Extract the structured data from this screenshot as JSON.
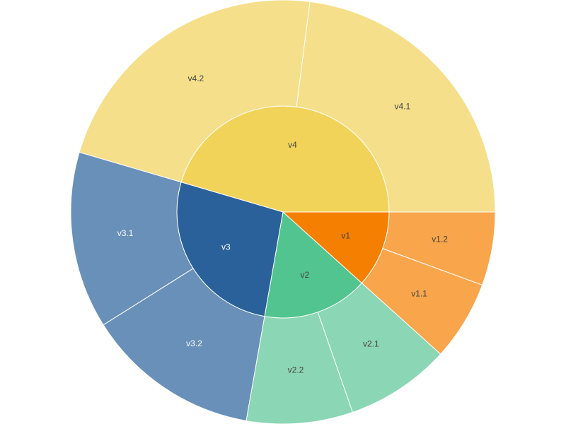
{
  "chart_data": {
    "type": "sunburst",
    "nodes": [
      {
        "label": "v4",
        "value": 45.5,
        "color": "#f2d35a",
        "label_color": "#444444",
        "children": [
          {
            "label": "v4.1",
            "value": 23,
            "color": "#f5df8a",
            "label_color": "#444444"
          },
          {
            "label": "v4.2",
            "value": 22.5,
            "color": "#f5df8a",
            "label_color": "#444444"
          }
        ]
      },
      {
        "label": "v3",
        "value": 26.8,
        "color": "#2b619a",
        "label_color": "#ffffff",
        "children": [
          {
            "label": "v3.1",
            "value": 13.5,
            "color": "#6890b8",
            "label_color": "#ffffff"
          },
          {
            "label": "v3.2",
            "value": 13.3,
            "color": "#6890b8",
            "label_color": "#ffffff"
          }
        ]
      },
      {
        "label": "v2",
        "value": 16.1,
        "color": "#52c48f",
        "label_color": "#444444",
        "children": [
          {
            "label": "v2.2",
            "value": 8.1,
            "color": "#8bd6b4",
            "label_color": "#444444"
          },
          {
            "label": "v2.1",
            "value": 8.0,
            "color": "#8bd6b4",
            "label_color": "#444444"
          }
        ]
      },
      {
        "label": "v1",
        "value": 11.7,
        "color": "#f57f00",
        "label_color": "#444444",
        "children": [
          {
            "label": "v1.1",
            "value": 6.1,
            "color": "#f8a54b",
            "label_color": "#444444"
          },
          {
            "label": "v1.2",
            "value": 5.6,
            "color": "#f8a54b",
            "label_color": "#444444"
          }
        ]
      }
    ]
  }
}
